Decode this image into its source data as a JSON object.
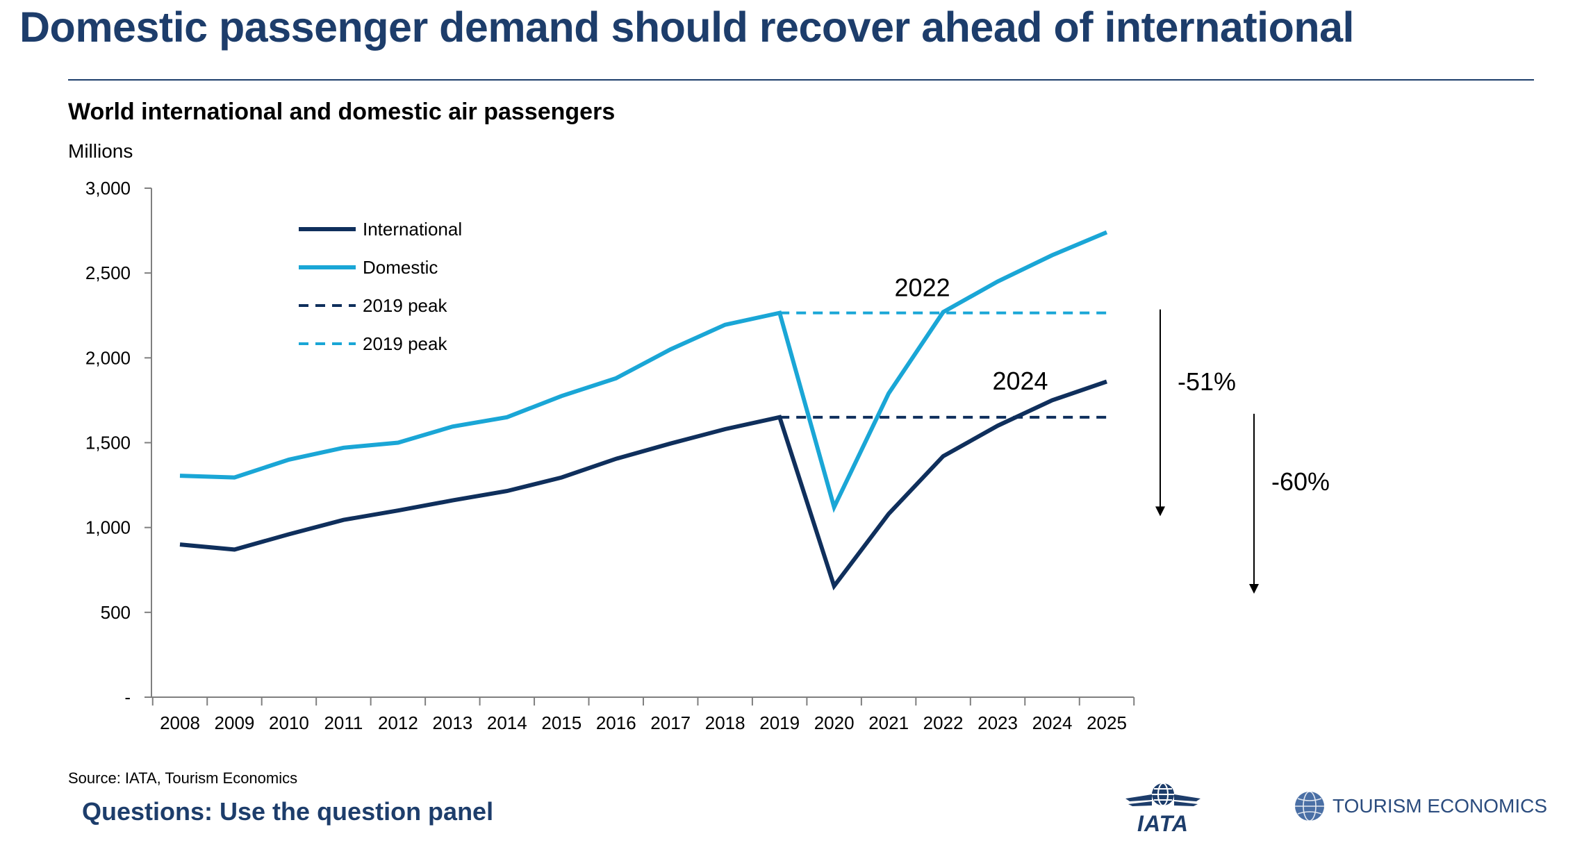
{
  "page": {
    "title": "Domestic passenger demand should recover ahead of international",
    "source": "Source: IATA, Tourism Economics",
    "questions": "Questions: Use the question panel",
    "logos": {
      "iata": "IATA",
      "tourism_economics": "TOURISM ECONOMICS"
    }
  },
  "colors": {
    "title": "#1d3d6b",
    "international": "#0f2f5c",
    "domestic": "#1aa6d6",
    "axis": "#7f7f7f"
  },
  "chart_data": {
    "type": "line",
    "title": "World international and domestic air passengers",
    "ylabel": "Millions",
    "xlabel": "",
    "ylim": [
      0,
      3000
    ],
    "yticks": [
      0,
      500,
      1000,
      1500,
      2000,
      2500,
      3000
    ],
    "ytick_labels": [
      "-",
      "500",
      "1,000",
      "1,500",
      "2,000",
      "2,500",
      "3,000"
    ],
    "categories": [
      "2008",
      "2009",
      "2010",
      "2011",
      "2012",
      "2013",
      "2014",
      "2015",
      "2016",
      "2017",
      "2018",
      "2019",
      "2020",
      "2021",
      "2022",
      "2023",
      "2024",
      "2025"
    ],
    "grid": false,
    "legend_position": "top-left",
    "series": [
      {
        "name": "International",
        "style": "solid",
        "color": "#0f2f5c",
        "values": [
          900,
          870,
          960,
          1045,
          1100,
          1160,
          1215,
          1295,
          1405,
          1495,
          1580,
          1650,
          655,
          1080,
          1420,
          1600,
          1750,
          1860
        ]
      },
      {
        "name": "Domestic",
        "style": "solid",
        "color": "#1aa6d6",
        "values": [
          1305,
          1295,
          1400,
          1470,
          1500,
          1595,
          1650,
          1775,
          1880,
          2050,
          2195,
          2265,
          1120,
          1790,
          2270,
          2450,
          2605,
          2740
        ]
      },
      {
        "name": "2019 peak",
        "style": "dashed",
        "color": "#0f2f5c",
        "start": "2019",
        "end": "2025",
        "value": 1650
      },
      {
        "name": "2019 peak",
        "style": "dashed",
        "color": "#1aa6d6",
        "start": "2019",
        "end": "2025",
        "value": 2265
      }
    ],
    "annotations": [
      {
        "text": "2022",
        "x": "2022",
        "y": 2265
      },
      {
        "text": "2024",
        "x": "2024",
        "y": 1650
      },
      {
        "text": "-51%",
        "from": 2265,
        "to": 1120
      },
      {
        "text": "-60%",
        "from": 1650,
        "to": 655
      }
    ]
  }
}
